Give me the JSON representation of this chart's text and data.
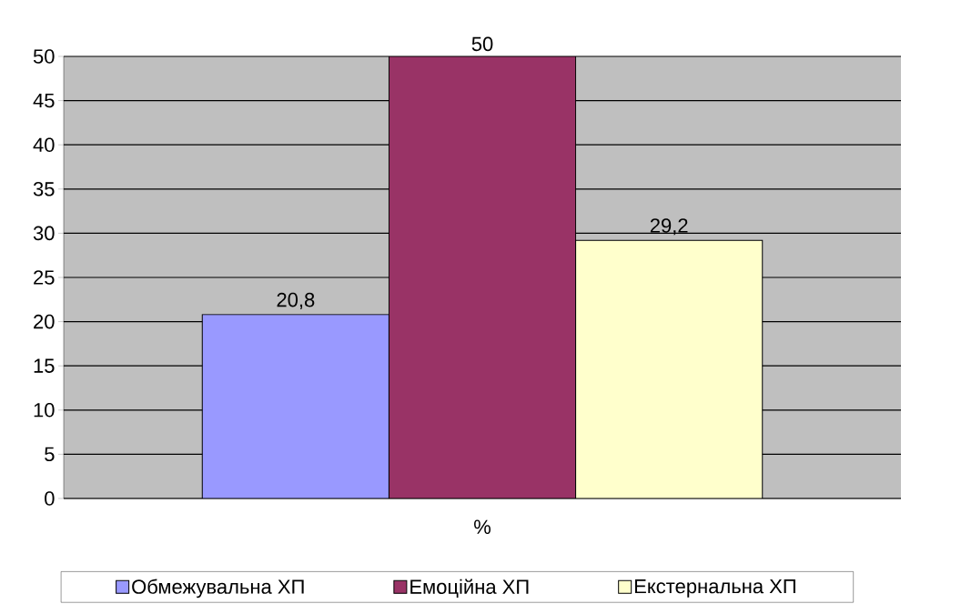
{
  "chart_data": {
    "type": "bar",
    "categories": [
      "%"
    ],
    "series": [
      {
        "name": "Обмежувальна ХП",
        "color": "#9999ff",
        "values": [
          20.8
        ],
        "value_labels": [
          "20,8"
        ]
      },
      {
        "name": "Емоційна ХП",
        "color": "#993366",
        "values": [
          50
        ],
        "value_labels": [
          "50"
        ]
      },
      {
        "name": "Екстернальна ХП",
        "color": "#ffffcc",
        "values": [
          29.2
        ],
        "value_labels": [
          "29,2"
        ]
      }
    ],
    "ylim": [
      0,
      50
    ],
    "yticks": [
      0,
      5,
      10,
      15,
      20,
      25,
      30,
      35,
      40,
      45,
      50
    ],
    "grid": "y",
    "legend": "bottom"
  }
}
